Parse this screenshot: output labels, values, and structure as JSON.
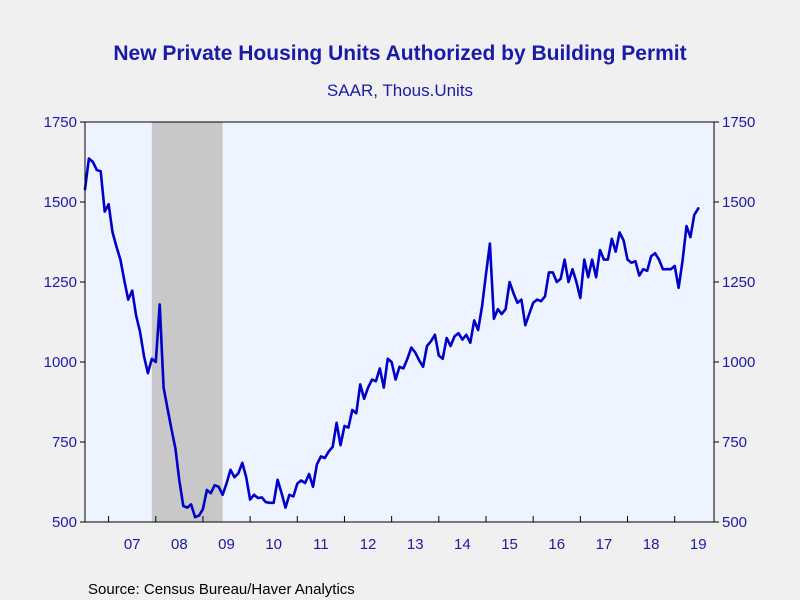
{
  "title": "New Private Housing Units Authorized by Building Permit",
  "subtitle": "SAAR, Thous.Units",
  "source": "Source:  Census Bureau/Haver Analytics",
  "colors": {
    "background": "#f0f0f0",
    "plot_background": "#eef4ff",
    "recession": "#c8c8c8",
    "line": "#0000c8",
    "text": "#1a1aa8"
  },
  "chart_data": {
    "type": "line",
    "title": "New Private Housing Units Authorized by Building Permit",
    "subtitle": "SAAR, Thous.Units",
    "ylim": [
      500,
      1750
    ],
    "yticks": [
      500,
      750,
      1000,
      1250,
      1500,
      1750
    ],
    "yaxis_both_sides": true,
    "xlim": [
      "2006-07",
      "2019-11"
    ],
    "xtick_labels": [
      "07",
      "08",
      "09",
      "10",
      "11",
      "12",
      "13",
      "14",
      "15",
      "16",
      "17",
      "18",
      "19"
    ],
    "grid": false,
    "recession_shading": {
      "start": "2007-12",
      "end": "2009-06"
    },
    "series": [
      {
        "frequency": "monthly",
        "start": "2006-07",
        "values": [
          1540,
          1636,
          1625,
          1600,
          1596,
          1470,
          1493,
          1406,
          1360,
          1320,
          1255,
          1195,
          1223,
          1145,
          1095,
          1018,
          965,
          1010,
          1000,
          1180,
          920,
          853,
          790,
          730,
          630,
          550,
          545,
          555,
          515,
          520,
          540,
          600,
          590,
          615,
          610,
          585,
          620,
          663,
          640,
          652,
          685,
          640,
          570,
          585,
          575,
          577,
          562,
          560,
          560,
          632,
          590,
          545,
          585,
          580,
          620,
          630,
          622,
          650,
          610,
          680,
          705,
          700,
          720,
          735,
          810,
          740,
          800,
          795,
          850,
          840,
          930,
          885,
          920,
          945,
          940,
          980,
          920,
          1010,
          1000,
          945,
          985,
          980,
          1010,
          1045,
          1030,
          1005,
          985,
          1050,
          1065,
          1085,
          1020,
          1010,
          1075,
          1050,
          1080,
          1090,
          1070,
          1085,
          1060,
          1130,
          1100,
          1175,
          1275,
          1370,
          1135,
          1165,
          1150,
          1165,
          1250,
          1215,
          1185,
          1195,
          1115,
          1150,
          1185,
          1195,
          1190,
          1205,
          1280,
          1280,
          1250,
          1260,
          1320,
          1250,
          1290,
          1250,
          1200,
          1320,
          1265,
          1320,
          1265,
          1350,
          1320,
          1320,
          1385,
          1345,
          1405,
          1380,
          1320,
          1310,
          1315,
          1270,
          1290,
          1285,
          1330,
          1340,
          1320,
          1290,
          1290,
          1290,
          1300,
          1232,
          1315,
          1425,
          1390,
          1460,
          1480
        ]
      }
    ]
  }
}
